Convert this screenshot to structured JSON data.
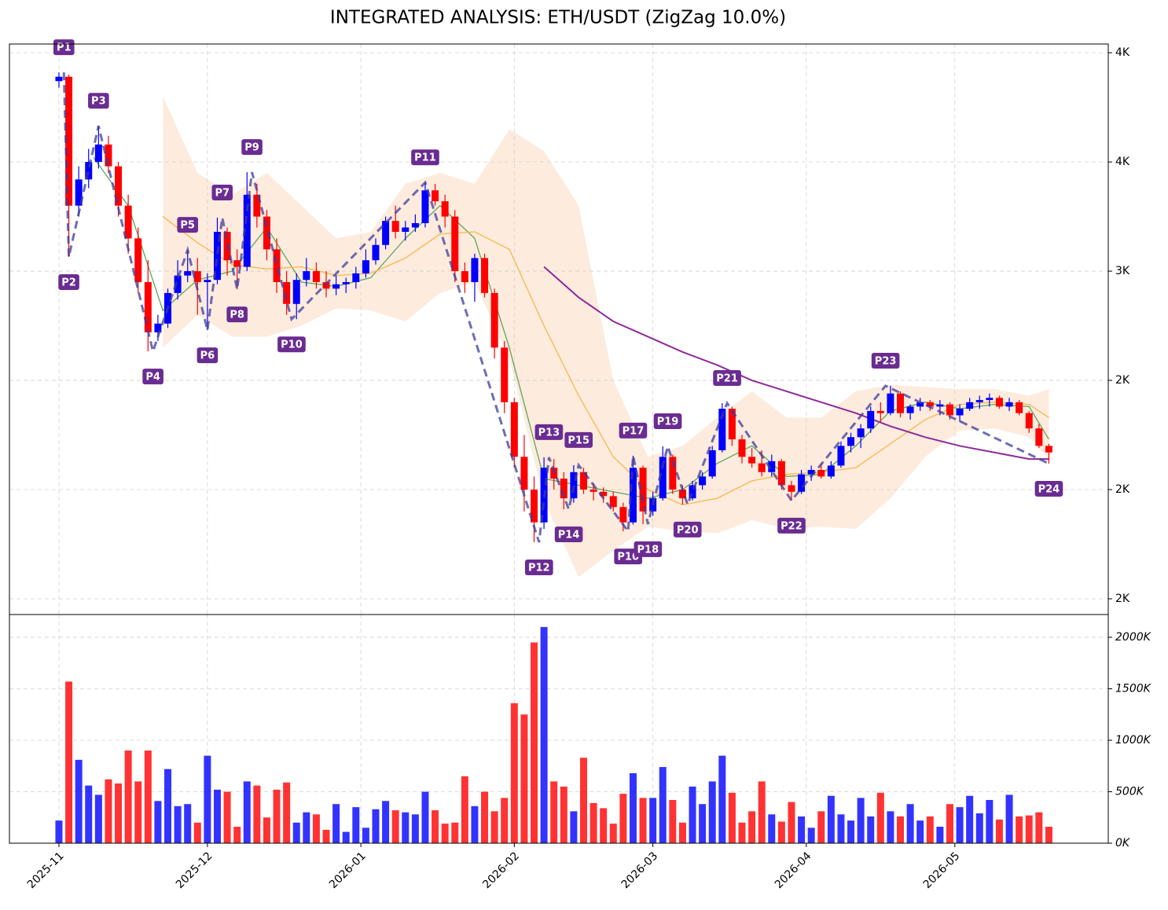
{
  "chart_data": {
    "type": "candlestick",
    "title": "INTEGRATED ANALYSIS: ETH/USDT (ZigZag 10.0%)",
    "up_color": "#0000ff",
    "down_color": "#ff0000",
    "grid": true,
    "xlim": [
      "2025-10-22",
      "2026-06-01"
    ],
    "xticks": [
      "2025-11",
      "2025-12",
      "2026-01",
      "2026-02",
      "2026-03",
      "2026-04",
      "2026-05"
    ],
    "ylim": [
      1428,
      4040
    ],
    "yticks": [
      {
        "value": 4000,
        "label": "4K"
      },
      {
        "value": 3500,
        "label": "4K"
      },
      {
        "value": 3000,
        "label": "3K"
      },
      {
        "value": 2500,
        "label": "2K"
      },
      {
        "value": 2000,
        "label": "2K"
      },
      {
        "value": 1500,
        "label": "2K"
      }
    ],
    "x": [
      "2025-11-01",
      "2025-11-03",
      "2025-11-05",
      "2025-11-07",
      "2025-11-09",
      "2025-11-11",
      "2025-11-13",
      "2025-11-15",
      "2025-11-17",
      "2025-11-19",
      "2025-11-21",
      "2025-11-23",
      "2025-11-25",
      "2025-11-27",
      "2025-11-29",
      "2025-12-01",
      "2025-12-03",
      "2025-12-05",
      "2025-12-07",
      "2025-12-09",
      "2025-12-11",
      "2025-12-13",
      "2025-12-15",
      "2025-12-17",
      "2025-12-19",
      "2025-12-21",
      "2025-12-23",
      "2025-12-25",
      "2025-12-27",
      "2025-12-29",
      "2025-12-31",
      "2026-01-02",
      "2026-01-04",
      "2026-01-06",
      "2026-01-08",
      "2026-01-10",
      "2026-01-12",
      "2026-01-14",
      "2026-01-16",
      "2026-01-18",
      "2026-01-20",
      "2026-01-22",
      "2026-01-24",
      "2026-01-26",
      "2026-01-28",
      "2026-01-30",
      "2026-02-01",
      "2026-02-03",
      "2026-02-05",
      "2026-02-07",
      "2026-02-09",
      "2026-02-11",
      "2026-02-13",
      "2026-02-15",
      "2026-02-17",
      "2026-02-19",
      "2026-02-21",
      "2026-02-23",
      "2026-02-25",
      "2026-02-27",
      "2026-03-01",
      "2026-03-03",
      "2026-03-05",
      "2026-03-07",
      "2026-03-09",
      "2026-03-11",
      "2026-03-13",
      "2026-03-15",
      "2026-03-17",
      "2026-03-19",
      "2026-03-21",
      "2026-03-23",
      "2026-03-25",
      "2026-03-27",
      "2026-03-29",
      "2026-03-31",
      "2026-04-02",
      "2026-04-04",
      "2026-04-06",
      "2026-04-08",
      "2026-04-10",
      "2026-04-12",
      "2026-04-14",
      "2026-04-16",
      "2026-04-18",
      "2026-04-20",
      "2026-04-22",
      "2026-04-24",
      "2026-04-26",
      "2026-04-28",
      "2026-04-30",
      "2026-05-02",
      "2026-05-04",
      "2026-05-06",
      "2026-05-08",
      "2026-05-10",
      "2026-05-12",
      "2026-05-14",
      "2026-05-16",
      "2026-05-18",
      "2026-05-20"
    ],
    "open": [
      3870,
      3890,
      3300,
      3420,
      3500,
      3580,
      3480,
      3300,
      3150,
      2950,
      2720,
      2760,
      2900,
      2980,
      3000,
      2950,
      2960,
      3180,
      3050,
      3020,
      3350,
      3250,
      3100,
      2950,
      2850,
      2960,
      3000,
      2950,
      2920,
      2940,
      2950,
      2990,
      3050,
      3120,
      3230,
      3180,
      3200,
      3220,
      3370,
      3320,
      3250,
      3000,
      2950,
      3060,
      2900,
      2650,
      2400,
      2150,
      2000,
      1850,
      2100,
      2050,
      1960,
      2080,
      2000,
      1990,
      1970,
      1920,
      1850,
      2100,
      1900,
      1960,
      2150,
      2000,
      1960,
      2020,
      2060,
      2180,
      2370,
      2230,
      2150,
      2120,
      2080,
      2130,
      2020,
      1990,
      2070,
      2090,
      2060,
      2110,
      2200,
      2240,
      2280,
      2360,
      2350,
      2440,
      2350,
      2380,
      2400,
      2380,
      2390,
      2340,
      2370,
      2400,
      2410,
      2420,
      2380,
      2400,
      2350,
      2280,
      2200
    ],
    "high": [
      3910,
      3900,
      3480,
      3560,
      3665,
      3620,
      3500,
      3350,
      3200,
      3050,
      2800,
      2920,
      3050,
      3097,
      3060,
      2990,
      3245,
      3200,
      3100,
      3453,
      3400,
      3280,
      3150,
      3000,
      2990,
      3060,
      3040,
      3000,
      2980,
      2970,
      3020,
      3100,
      3150,
      3250,
      3300,
      3230,
      3260,
      3406,
      3400,
      3350,
      3280,
      3040,
      3080,
      3080,
      2920,
      2680,
      2420,
      2250,
      2060,
      2148,
      2140,
      2080,
      2112,
      2100,
      2030,
      2010,
      1990,
      1940,
      2155,
      2110,
      1990,
      2198,
      2160,
      2020,
      2040,
      2080,
      2200,
      2396,
      2380,
      2250,
      2190,
      2180,
      2160,
      2140,
      2040,
      2090,
      2110,
      2120,
      2130,
      2220,
      2260,
      2300,
      2380,
      2400,
      2475,
      2450,
      2390,
      2420,
      2410,
      2410,
      2400,
      2390,
      2420,
      2430,
      2440,
      2430,
      2420,
      2410,
      2360,
      2300,
      2210
    ],
    "low": [
      3840,
      3065,
      3250,
      3380,
      3470,
      3450,
      3250,
      3080,
      2900,
      2633,
      2680,
      2740,
      2870,
      2950,
      2800,
      2730,
      2940,
      2980,
      2917,
      3000,
      3200,
      3050,
      2900,
      2800,
      2780,
      2930,
      2920,
      2880,
      2890,
      2900,
      2920,
      2970,
      3030,
      3100,
      3150,
      3140,
      3180,
      3200,
      3300,
      3200,
      2950,
      2900,
      2860,
      2880,
      2600,
      2350,
      2100,
      1900,
      1759,
      1820,
      2000,
      1910,
      1940,
      1980,
      1950,
      1940,
      1900,
      1809,
      1840,
      1842,
      1880,
      1950,
      1980,
      1932,
      1950,
      2000,
      2050,
      2170,
      2200,
      2120,
      2100,
      2060,
      2060,
      2000,
      1950,
      1980,
      2040,
      2050,
      2050,
      2100,
      2170,
      2190,
      2260,
      2310,
      2340,
      2330,
      2320,
      2360,
      2360,
      2340,
      2320,
      2310,
      2360,
      2370,
      2380,
      2370,
      2360,
      2340,
      2260,
      2190,
      2119
    ],
    "close": [
      3890,
      3300,
      3420,
      3500,
      3580,
      3480,
      3300,
      3150,
      2950,
      2720,
      2760,
      2900,
      2980,
      3000,
      2950,
      2960,
      3180,
      3050,
      3020,
      3350,
      3250,
      3100,
      2950,
      2850,
      2960,
      3000,
      2950,
      2920,
      2940,
      2950,
      2990,
      3050,
      3120,
      3230,
      3180,
      3200,
      3220,
      3370,
      3320,
      3250,
      3000,
      2950,
      3060,
      2900,
      2650,
      2400,
      2150,
      2000,
      1850,
      2100,
      2050,
      1960,
      2080,
      2000,
      1990,
      1970,
      1920,
      1850,
      2100,
      1900,
      1960,
      2150,
      2000,
      1960,
      2020,
      2060,
      2180,
      2370,
      2230,
      2150,
      2120,
      2080,
      2130,
      2020,
      1990,
      2070,
      2090,
      2060,
      2110,
      2200,
      2240,
      2280,
      2360,
      2350,
      2440,
      2350,
      2380,
      2400,
      2380,
      2390,
      2340,
      2370,
      2400,
      2410,
      2420,
      2380,
      2400,
      2350,
      2280,
      2200,
      2170
    ],
    "band": {
      "color": "#fbd3b3",
      "x": [
        "2025-11-22",
        "2025-11-29",
        "2025-12-06",
        "2025-12-13",
        "2025-12-20",
        "2025-12-27",
        "2026-01-03",
        "2026-01-10",
        "2026-01-17",
        "2026-01-24",
        "2026-01-31",
        "2026-02-07",
        "2026-02-14",
        "2026-02-21",
        "2026-02-28",
        "2026-03-07",
        "2026-03-14",
        "2026-03-21",
        "2026-03-28",
        "2026-04-04",
        "2026-04-11",
        "2026-04-18",
        "2026-04-25",
        "2026-05-02",
        "2026-05-09",
        "2026-05-16",
        "2026-05-20"
      ],
      "upper": [
        3800,
        3450,
        3350,
        3450,
        3300,
        3150,
        3180,
        3400,
        3450,
        3400,
        3650,
        3550,
        3300,
        2500,
        2150,
        2200,
        2330,
        2450,
        2330,
        2330,
        2450,
        2480,
        2470,
        2460,
        2460,
        2430,
        2460
      ],
      "lower": [
        2650,
        2800,
        2700,
        2700,
        2750,
        2830,
        2820,
        2770,
        2900,
        2950,
        2600,
        1950,
        1600,
        1720,
        1830,
        1810,
        1800,
        1860,
        1820,
        1830,
        1820,
        1960,
        2150,
        2270,
        2280,
        2240,
        2140
      ]
    },
    "lines": [
      {
        "color": "#5ea65e",
        "x": [
          "2025-11-08",
          "2025-11-15",
          "2025-11-22",
          "2025-11-29",
          "2025-12-06",
          "2025-12-13",
          "2025-12-20",
          "2025-12-27",
          "2026-01-03",
          "2026-01-10",
          "2026-01-17",
          "2026-01-24",
          "2026-01-31",
          "2026-02-07",
          "2026-02-14",
          "2026-02-21",
          "2026-02-28",
          "2026-03-07",
          "2026-03-14",
          "2026-03-21",
          "2026-03-28",
          "2026-04-04",
          "2026-04-11",
          "2026-04-18",
          "2026-04-25",
          "2026-05-02",
          "2026-05-09",
          "2026-05-16",
          "2026-05-20"
        ],
        "values": [
          3520,
          3300,
          2820,
          2960,
          3000,
          3200,
          2950,
          2930,
          2970,
          3150,
          3300,
          3150,
          2650,
          2050,
          2020,
          1990,
          1960,
          2000,
          2120,
          2200,
          2060,
          2070,
          2200,
          2360,
          2400,
          2370,
          2390,
          2380,
          2230
        ]
      },
      {
        "color": "#f7b84b",
        "x": [
          "2025-11-22",
          "2025-11-29",
          "2025-12-06",
          "2025-12-13",
          "2025-12-20",
          "2025-12-27",
          "2026-01-03",
          "2026-01-10",
          "2026-01-17",
          "2026-01-24",
          "2026-01-31",
          "2026-02-07",
          "2026-02-14",
          "2026-02-21",
          "2026-02-28",
          "2026-03-07",
          "2026-03-14",
          "2026-03-21",
          "2026-03-28",
          "2026-04-04",
          "2026-04-11",
          "2026-04-18",
          "2026-04-25",
          "2026-05-02",
          "2026-05-09",
          "2026-05-16",
          "2026-05-20"
        ],
        "values": [
          3250,
          3130,
          3030,
          3010,
          3020,
          2980,
          2990,
          3060,
          3170,
          3180,
          3100,
          2750,
          2430,
          2150,
          2000,
          1930,
          1960,
          2040,
          2070,
          2080,
          2100,
          2210,
          2320,
          2390,
          2400,
          2390,
          2330
        ]
      },
      {
        "color": "#8e2a9a",
        "x": [
          "2026-02-07",
          "2026-02-14",
          "2026-02-21",
          "2026-02-28",
          "2026-03-07",
          "2026-03-14",
          "2026-03-21",
          "2026-03-28",
          "2026-04-04",
          "2026-04-11",
          "2026-04-18",
          "2026-04-25",
          "2026-05-02",
          "2026-05-09",
          "2026-05-16",
          "2026-05-20"
        ],
        "values": [
          3020,
          2880,
          2770,
          2700,
          2630,
          2570,
          2500,
          2450,
          2400,
          2350,
          2290,
          2240,
          2200,
          2170,
          2140,
          2140
        ]
      }
    ],
    "zigzag": {
      "color": "#3c3c9c",
      "label_color": "#6a2c91",
      "labels": [
        "P1",
        "P2",
        "P3",
        "P4",
        "P5",
        "P6",
        "P7",
        "P8",
        "P9",
        "P10",
        "P11",
        "P12",
        "P13",
        "P14",
        "P15",
        "P16",
        "P17",
        "P18",
        "P19",
        "P20",
        "P21",
        "P22",
        "P23",
        "P24"
      ],
      "x": [
        "2025-11-02",
        "2025-11-03",
        "2025-11-09",
        "2025-11-20",
        "2025-11-27",
        "2025-12-01",
        "2025-12-04",
        "2025-12-07",
        "2025-12-10",
        "2025-12-18",
        "2026-01-14",
        "2026-02-06",
        "2026-02-08",
        "2026-02-12",
        "2026-02-14",
        "2026-02-24",
        "2026-02-25",
        "2026-02-28",
        "2026-03-04",
        "2026-03-08",
        "2026-03-16",
        "2026-03-29",
        "2026-04-17",
        "2026-05-20"
      ],
      "values": [
        3910,
        3065,
        3665,
        2633,
        3097,
        2730,
        3245,
        2917,
        3453,
        2780,
        3406,
        1759,
        2148,
        1910,
        2112,
        1809,
        2155,
        1842,
        2198,
        1932,
        2396,
        1950,
        2475,
        2119
      ]
    },
    "volume": [
      220000,
      1570000,
      810000,
      560000,
      470000,
      620000,
      580000,
      900000,
      600000,
      900000,
      410000,
      720000,
      360000,
      380000,
      200000,
      850000,
      520000,
      500000,
      160000,
      600000,
      560000,
      250000,
      520000,
      590000,
      200000,
      300000,
      280000,
      130000,
      380000,
      110000,
      350000,
      150000,
      330000,
      410000,
      320000,
      300000,
      280000,
      500000,
      320000,
      190000,
      200000,
      650000,
      360000,
      500000,
      310000,
      440000,
      1360000,
      1250000,
      1950000,
      2100000,
      600000,
      550000,
      310000,
      830000,
      390000,
      340000,
      190000,
      480000,
      680000,
      440000,
      440000,
      740000,
      420000,
      200000,
      550000,
      380000,
      600000,
      850000,
      490000,
      200000,
      310000,
      600000,
      280000,
      210000,
      400000,
      260000,
      150000,
      310000,
      460000,
      280000,
      220000,
      440000,
      260000,
      490000,
      310000,
      260000,
      380000,
      220000,
      260000,
      160000,
      380000,
      350000,
      460000,
      290000,
      420000,
      230000,
      470000,
      260000,
      270000,
      300000,
      160000
    ],
    "volume_ylim": [
      0,
      2221000
    ],
    "volume_yticks": [
      {
        "value": 0,
        "label": "0K"
      },
      {
        "value": 500000,
        "label": "500K"
      },
      {
        "value": 1000000,
        "label": "1000K"
      },
      {
        "value": 1500000,
        "label": "1500K"
      },
      {
        "value": 2000000,
        "label": "2000K"
      }
    ]
  }
}
